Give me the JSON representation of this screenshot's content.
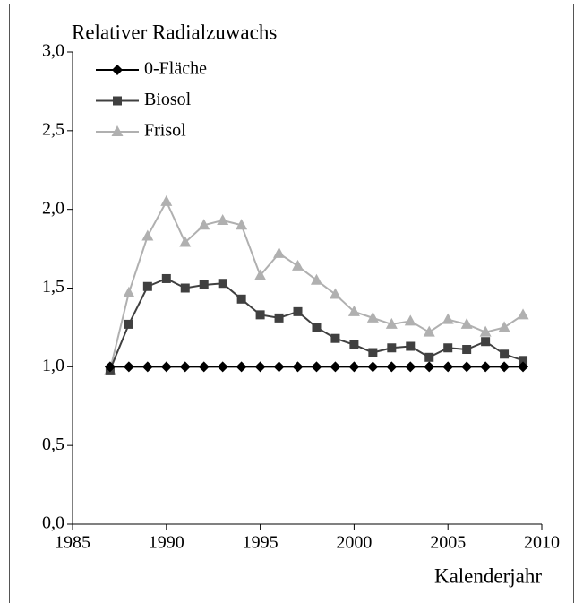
{
  "chart_data": {
    "type": "line",
    "title": "Relativer Radialzuwachs",
    "x_label": "Kalenderjahr",
    "x": [
      1987,
      1988,
      1989,
      1990,
      1991,
      1992,
      1993,
      1994,
      1995,
      1996,
      1997,
      1998,
      1999,
      2000,
      2001,
      2002,
      2003,
      2004,
      2005,
      2006,
      2007,
      2008,
      2009
    ],
    "series": [
      {
        "name": "0-Fläche",
        "color": "#000000",
        "marker": "diamond",
        "values": [
          1,
          1,
          1,
          1,
          1,
          1,
          1,
          1,
          1,
          1,
          1,
          1,
          1,
          1,
          1,
          1,
          1,
          1,
          1,
          1,
          1,
          1,
          1
        ]
      },
      {
        "name": "Biosol",
        "color": "#404040",
        "marker": "square",
        "values": [
          0.98,
          1.27,
          1.51,
          1.56,
          1.5,
          1.52,
          1.53,
          1.43,
          1.33,
          1.31,
          1.35,
          1.25,
          1.18,
          1.14,
          1.09,
          1.12,
          1.13,
          1.06,
          1.12,
          1.11,
          1.16,
          1.08,
          1.04
        ]
      },
      {
        "name": "Frisol",
        "color": "#b0b0b0",
        "marker": "triangle",
        "values": [
          0.98,
          1.47,
          1.83,
          2.05,
          1.79,
          1.9,
          1.93,
          1.9,
          1.58,
          1.72,
          1.64,
          1.55,
          1.46,
          1.35,
          1.31,
          1.27,
          1.29,
          1.22,
          1.3,
          1.27,
          1.22,
          1.25,
          1.33
        ]
      }
    ],
    "xlim": [
      1985,
      2010
    ],
    "xticks": [
      1985,
      1990,
      1995,
      2000,
      2005,
      2010
    ],
    "ylim": [
      0,
      3
    ],
    "yticks": [
      {
        "value": 0,
        "label": "0,0"
      },
      {
        "value": 0.5,
        "label": "0,5"
      },
      {
        "value": 1,
        "label": "1,0"
      },
      {
        "value": 1.5,
        "label": "1,5"
      },
      {
        "value": 2,
        "label": "2,0"
      },
      {
        "value": 2.5,
        "label": "2,5"
      },
      {
        "value": 3,
        "label": "3,0"
      }
    ],
    "legend": "top-left",
    "grid": false
  }
}
